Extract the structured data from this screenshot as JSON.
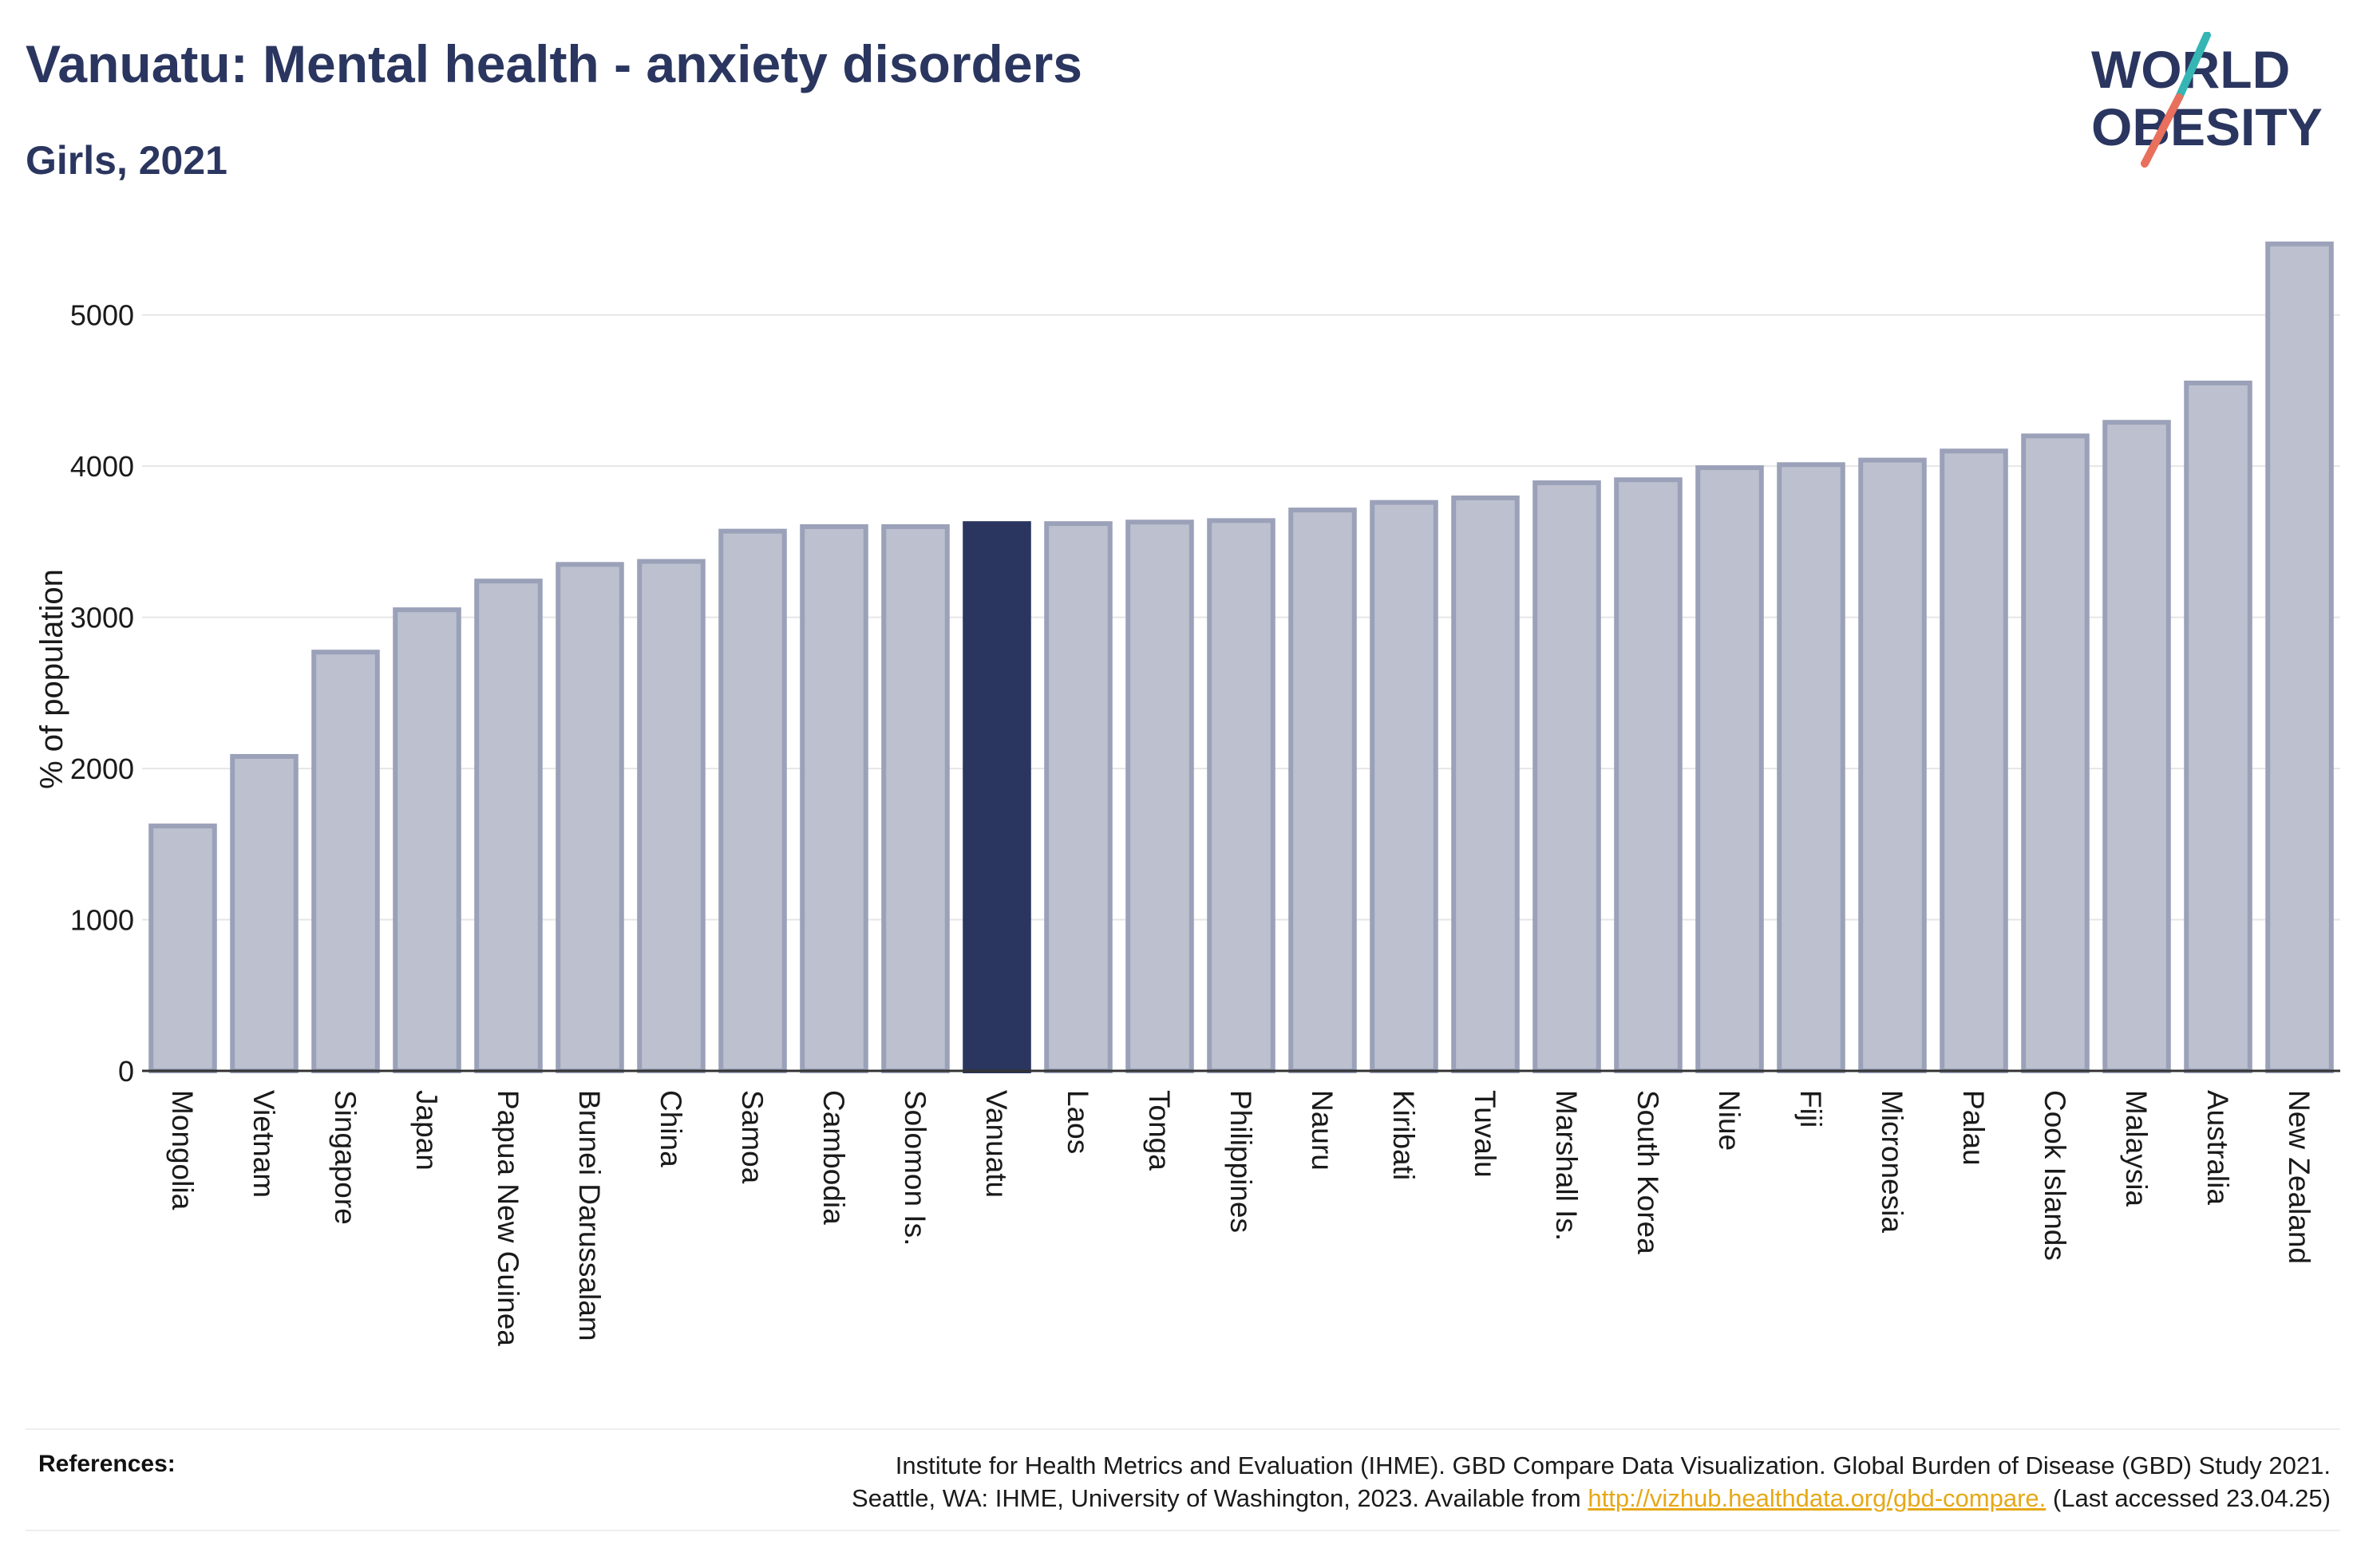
{
  "header": {
    "title": "Vanuatu: Mental health - anxiety disorders",
    "subtitle": "Girls, 2021"
  },
  "logo": {
    "line1": "WORLD",
    "line2": "OBESITY",
    "accent_colors": [
      "#35b6b4",
      "#e8705d"
    ]
  },
  "chart_data": {
    "type": "bar",
    "title": "Vanuatu: Mental health - anxiety disorders",
    "subtitle": "Girls, 2021",
    "xlabel": "",
    "ylabel": "% of population",
    "ylim": [
      0,
      5500
    ],
    "yticks": [
      0,
      1000,
      2000,
      3000,
      4000,
      5000
    ],
    "grid": true,
    "highlight": "Vanuatu",
    "colors": {
      "bar": "#bdc1cf",
      "bar_edge": "#9aa1b8",
      "highlight": "#2a365f"
    },
    "categories": [
      "Mongolia",
      "Vietnam",
      "Singapore",
      "Japan",
      "Papua New Guinea",
      "Brunei Darussalam",
      "China",
      "Samoa",
      "Cambodia",
      "Solomon Is.",
      "Vanuatu",
      "Laos",
      "Tonga",
      "Philippines",
      "Nauru",
      "Kiribati",
      "Tuvalu",
      "Marshall Is.",
      "South Korea",
      "Niue",
      "Fiji",
      "Micronesia",
      "Palau",
      "Cook Islands",
      "Malaysia",
      "Australia",
      "New Zealand"
    ],
    "values": [
      1620,
      2080,
      2770,
      3050,
      3240,
      3350,
      3370,
      3570,
      3600,
      3600,
      3620,
      3620,
      3630,
      3640,
      3710,
      3760,
      3790,
      3890,
      3910,
      3990,
      4010,
      4040,
      4100,
      4200,
      4290,
      4550,
      5470
    ]
  },
  "references": {
    "label": "References:",
    "line1": "Institute for Health Metrics and Evaluation (IHME). GBD Compare Data Visualization. Global Burden of Disease (GBD) Study 2021.",
    "line2_prefix": "Seattle, WA: IHME, University of Washington, 2023. Available from",
    "link": "http://vizhub.healthdata.org/gbd-compare.",
    "line2_suffix": "(Last accessed 23.04.25)"
  }
}
